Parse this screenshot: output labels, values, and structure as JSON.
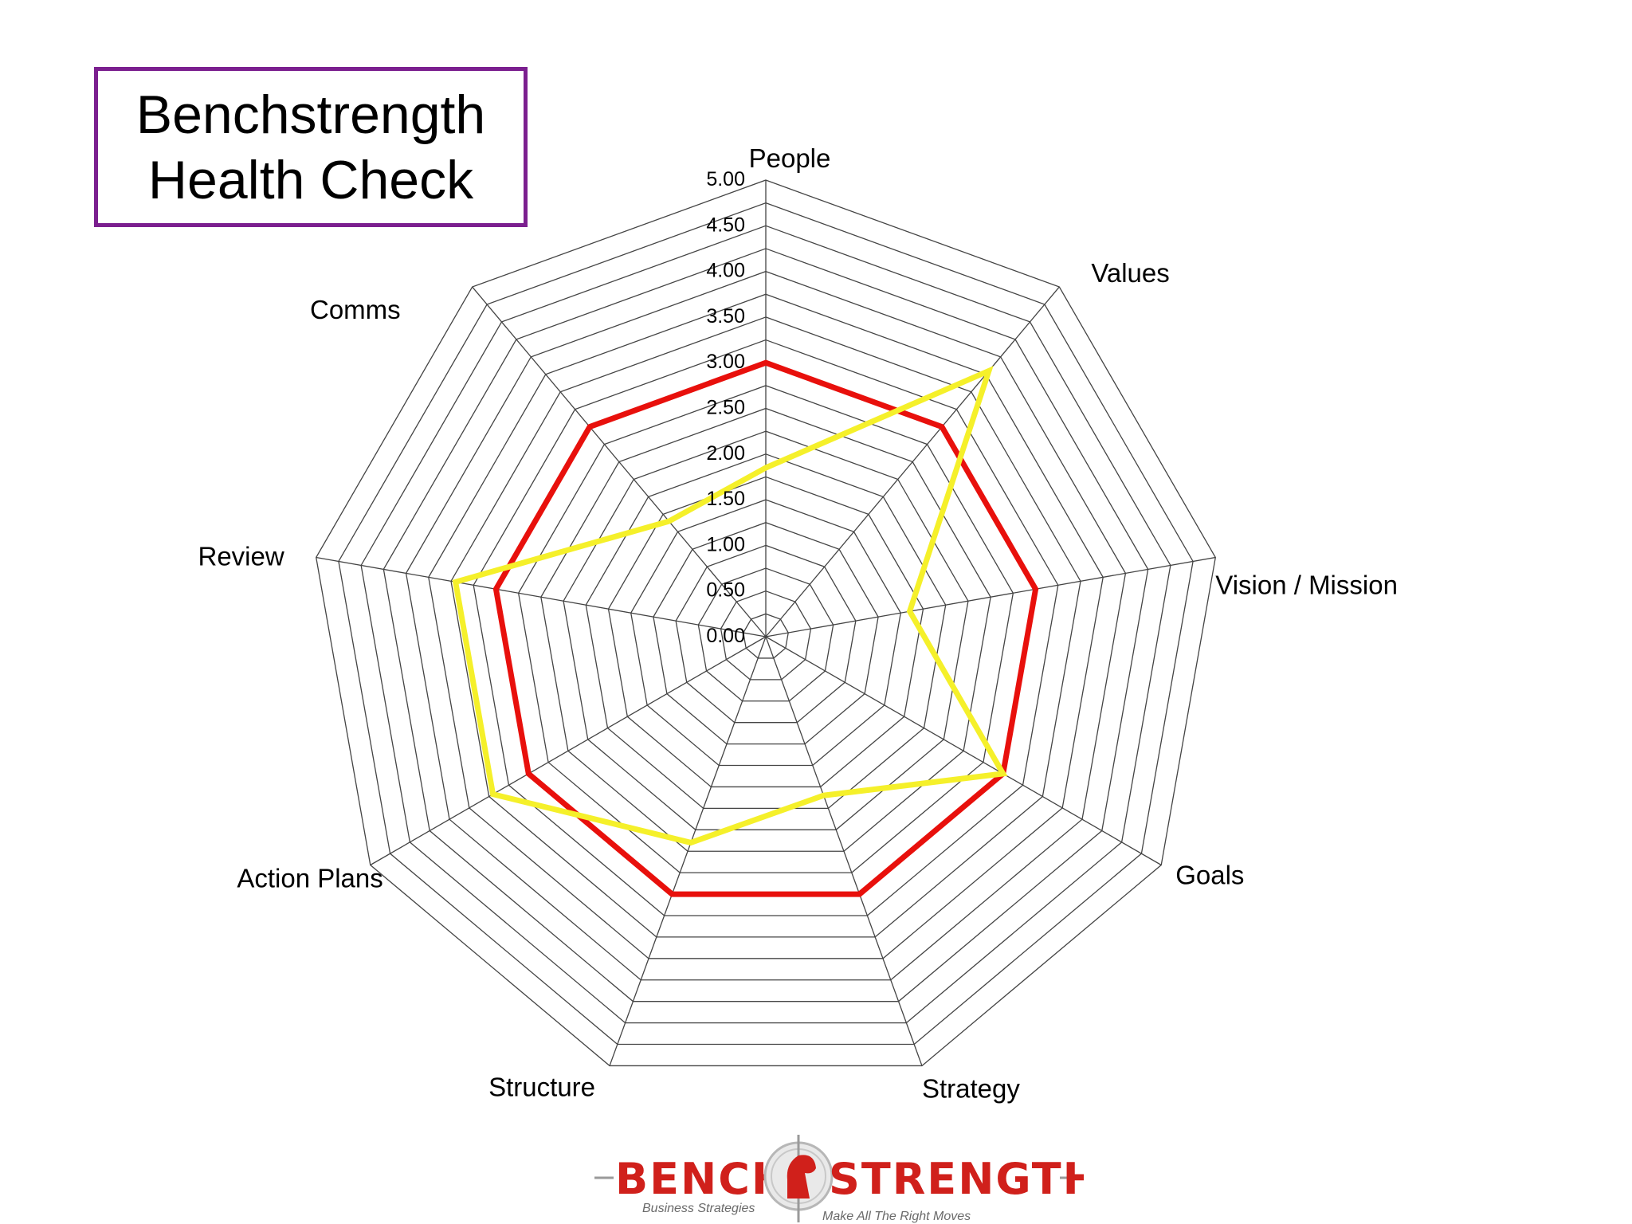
{
  "title": {
    "line1": "Benchstrength",
    "line2": "Health Check"
  },
  "chart_data": {
    "type": "radar",
    "title": "Benchstrength Health Check",
    "axes": [
      "People",
      "Values",
      "Vision / Mission",
      "Goals",
      "Strategy",
      "Structure",
      "Action Plans",
      "Review",
      "Comms"
    ],
    "ticks": [
      "0.00",
      "0.50",
      "1.00",
      "1.50",
      "2.00",
      "2.50",
      "3.00",
      "3.50",
      "4.00",
      "4.50",
      "5.00"
    ],
    "rlim": [
      0,
      5
    ],
    "gridlines": 20,
    "grid": true,
    "series": [
      {
        "color": "#e8100c",
        "values": [
          3.0,
          3.0,
          3.0,
          3.0,
          3.0,
          3.0,
          3.0,
          3.0,
          3.0
        ]
      },
      {
        "color": "#f5f02a",
        "values": [
          1.85,
          3.8,
          1.6,
          3.0,
          1.85,
          2.4,
          3.45,
          3.45,
          1.65
        ]
      }
    ]
  },
  "logo": {
    "name": "BENCHSTRENGTH",
    "left_text": "BENCH",
    "right_text": "STRENGTH",
    "tagline_left": "Business Strategies",
    "tagline_right": "Make All The Right Moves",
    "color": "#d0201b"
  }
}
